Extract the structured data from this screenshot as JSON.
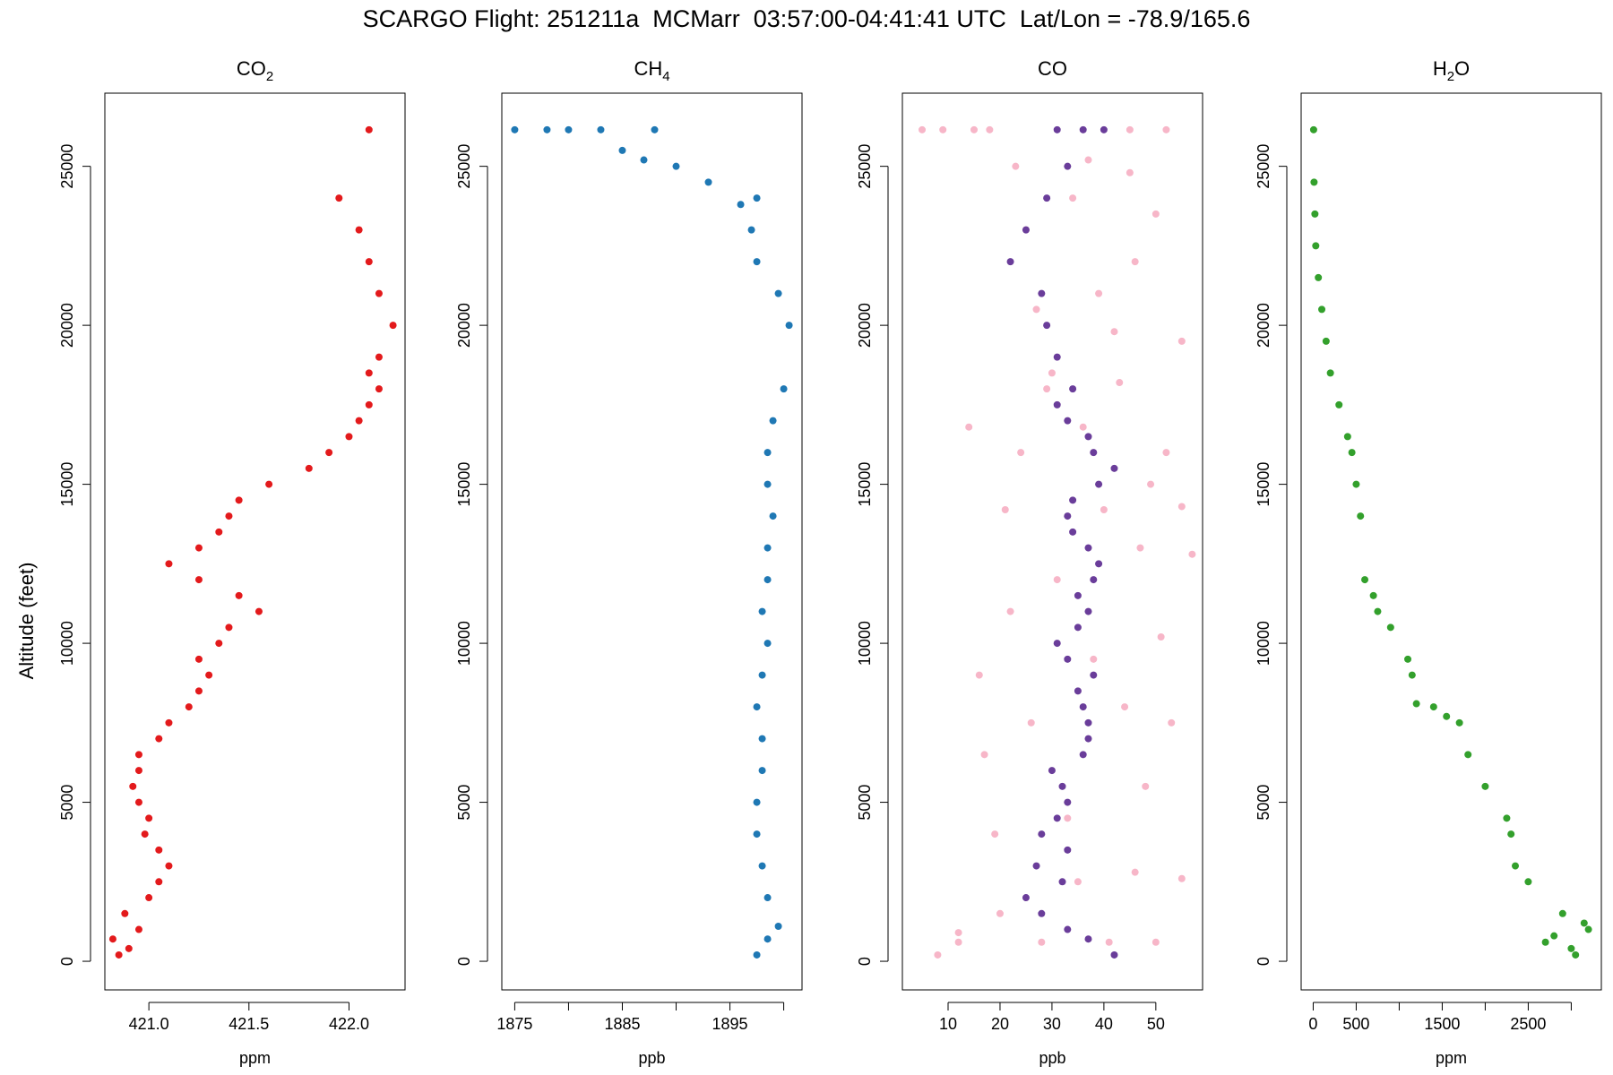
{
  "title": "SCARGO Flight: 251211a  MCMarr  03:57:00-04:41:41 UTC  Lat/Lon = -78.9/165.6",
  "ylabel": "Altitude (feet)",
  "chart_data": [
    {
      "type": "scatter",
      "title": "CO",
      "title_sub": "2",
      "xlabel": "ppm",
      "ylabel": "Altitude (feet)",
      "xlim": [
        420.78,
        422.28
      ],
      "ylim": [
        -900,
        27300
      ],
      "xticks": [
        421.0,
        421.5,
        422.0
      ],
      "xtick_labels": [
        "421.0",
        "421.5",
        "422.0"
      ],
      "yticks": [
        0,
        5000,
        10000,
        15000,
        20000,
        25000
      ],
      "ytick_labels": [
        "0",
        "5000",
        "10000",
        "15000",
        "20000",
        "25000"
      ],
      "color": "#e31a1c",
      "series": [
        {
          "name": "CO2",
          "color": "#e31a1c",
          "x": [
            420.85,
            420.9,
            420.82,
            420.95,
            420.88,
            421.0,
            421.05,
            421.1,
            421.05,
            420.98,
            421.0,
            420.95,
            420.92,
            420.95,
            420.95,
            421.05,
            421.1,
            421.2,
            421.25,
            421.3,
            421.25,
            421.35,
            421.4,
            421.55,
            421.45,
            421.25,
            421.1,
            421.25,
            421.35,
            421.4,
            421.45,
            421.6,
            421.8,
            421.9,
            422.0,
            422.05,
            422.1,
            422.15,
            422.1,
            422.15,
            422.22,
            422.15,
            422.1,
            422.05,
            421.95,
            422.1
          ],
          "y": [
            200,
            400,
            700,
            1000,
            1500,
            2000,
            2500,
            3000,
            3500,
            4000,
            4500,
            5000,
            5500,
            6000,
            6500,
            7000,
            7500,
            8000,
            8500,
            9000,
            9500,
            10000,
            10500,
            11000,
            11500,
            12000,
            12500,
            13000,
            13500,
            14000,
            14500,
            15000,
            15500,
            16000,
            16500,
            17000,
            17500,
            18000,
            18500,
            19000,
            20000,
            21000,
            22000,
            23000,
            24000,
            26150
          ]
        }
      ]
    },
    {
      "type": "scatter",
      "title": "CH",
      "title_sub": "4",
      "xlabel": "ppb",
      "ylabel": "Altitude (feet)",
      "xlim": [
        1873.8,
        1901.7
      ],
      "ylim": [
        -900,
        27300
      ],
      "xticks": [
        1875,
        1880,
        1885,
        1890,
        1895,
        1900
      ],
      "xtick_labels": [
        "1875",
        "",
        "1885",
        "",
        "1895",
        ""
      ],
      "yticks": [
        0,
        5000,
        10000,
        15000,
        20000,
        25000
      ],
      "ytick_labels": [
        "0",
        "5000",
        "10000",
        "15000",
        "20000",
        "25000"
      ],
      "color": "#1f78b4",
      "series": [
        {
          "name": "CH4",
          "color": "#1f78b4",
          "x": [
            1897.5,
            1898.5,
            1899.5,
            1898.5,
            1898.0,
            1897.5,
            1897.5,
            1898.0,
            1898.0,
            1897.5,
            1898.0,
            1898.5,
            1898.0,
            1898.5,
            1898.5,
            1899.0,
            1898.5,
            1898.5,
            1899.0,
            1900.0,
            1900.5,
            1899.5,
            1897.5,
            1897.0,
            1897.5,
            1896.0,
            1893.0,
            1890.0,
            1887.0,
            1885.0,
            1880.0,
            1875.0,
            1878.0,
            1883.0,
            1888.0
          ],
          "y": [
            200,
            700,
            1100,
            2000,
            3000,
            4000,
            5000,
            6000,
            7000,
            8000,
            9000,
            10000,
            11000,
            12000,
            13000,
            14000,
            15000,
            16000,
            17000,
            18000,
            20000,
            21000,
            22000,
            23000,
            24000,
            23800,
            24500,
            25000,
            25200,
            25500,
            26150,
            26150,
            26150,
            26150,
            26150
          ]
        }
      ]
    },
    {
      "type": "scatter",
      "title": "CO",
      "title_sub": "",
      "xlabel": "ppb",
      "ylabel": "Altitude (feet)",
      "xlim": [
        1.2,
        59
      ],
      "ylim": [
        -900,
        27300
      ],
      "xticks": [
        10,
        20,
        30,
        40,
        50
      ],
      "xtick_labels": [
        "10",
        "20",
        "30",
        "40",
        "50"
      ],
      "yticks": [
        0,
        5000,
        10000,
        15000,
        20000,
        25000
      ],
      "ytick_labels": [
        "0",
        "5000",
        "10000",
        "15000",
        "20000",
        "25000"
      ],
      "series": [
        {
          "name": "CO raw",
          "color": "#f7b6c8",
          "x": [
            5,
            9,
            15,
            18,
            45,
            52,
            12,
            28,
            41,
            50,
            20,
            35,
            46,
            55,
            19,
            33,
            48,
            17,
            26,
            44,
            53,
            16,
            38,
            51,
            22,
            31,
            47,
            57,
            21,
            40,
            49,
            24,
            36,
            52,
            14,
            29,
            43,
            55,
            27,
            39,
            46,
            25,
            34,
            50,
            23,
            37,
            45,
            30,
            42,
            8,
            12,
            55
          ],
          "y": [
            26150,
            26150,
            26150,
            26150,
            26150,
            26150,
            600,
            600,
            600,
            600,
            1500,
            2500,
            2800,
            2600,
            4000,
            4500,
            5500,
            6500,
            7500,
            8000,
            7500,
            9000,
            9500,
            10200,
            11000,
            12000,
            13000,
            12800,
            14200,
            14200,
            15000,
            16000,
            16800,
            16000,
            16800,
            18000,
            18200,
            19500,
            20500,
            21000,
            22000,
            23000,
            24000,
            23500,
            25000,
            25200,
            24800,
            18500,
            19800,
            200,
            900,
            14300
          ]
        },
        {
          "name": "CO",
          "color": "#6a3d9a",
          "x": [
            42,
            37,
            33,
            28,
            25,
            32,
            27,
            33,
            28,
            31,
            33,
            32,
            30,
            36,
            37,
            37,
            36,
            35,
            38,
            33,
            31,
            35,
            37,
            35,
            38,
            39,
            37,
            34,
            33,
            34,
            39,
            42,
            38,
            37,
            33,
            31,
            34,
            31,
            29,
            28,
            22,
            25,
            29,
            33,
            31,
            36,
            40
          ],
          "y": [
            200,
            700,
            1000,
            1500,
            2000,
            2500,
            3000,
            3500,
            4000,
            4500,
            5000,
            5500,
            6000,
            6500,
            7000,
            7500,
            8000,
            8500,
            9000,
            9500,
            10000,
            10500,
            11000,
            11500,
            12000,
            12500,
            13000,
            13500,
            14000,
            14500,
            15000,
            15500,
            16000,
            16500,
            17000,
            17500,
            18000,
            19000,
            20000,
            21000,
            22000,
            23000,
            24000,
            25000,
            26150,
            26150,
            26150
          ]
        }
      ]
    },
    {
      "type": "scatter",
      "title": "H",
      "title_sub": "2",
      "title_after": "O",
      "xlabel": "ppm",
      "ylabel": "Altitude (feet)",
      "xlim": [
        -140,
        3350
      ],
      "ylim": [
        -900,
        27300
      ],
      "xticks": [
        0,
        500,
        1000,
        1500,
        2000,
        2500,
        3000
      ],
      "xtick_labels": [
        "0",
        "500",
        "",
        "1500",
        "",
        "2500",
        ""
      ],
      "yticks": [
        0,
        5000,
        10000,
        15000,
        20000,
        25000
      ],
      "ytick_labels": [
        "0",
        "5000",
        "10000",
        "15000",
        "20000",
        "25000"
      ],
      "color": "#33a02c",
      "series": [
        {
          "name": "H2O",
          "color": "#33a02c",
          "x": [
            3050,
            3000,
            2700,
            2800,
            3200,
            3150,
            2900,
            2500,
            2350,
            2300,
            2250,
            2000,
            1800,
            1700,
            1550,
            1400,
            1200,
            1150,
            1100,
            900,
            750,
            700,
            600,
            550,
            500,
            450,
            400,
            300,
            200,
            150,
            100,
            60,
            30,
            20,
            10,
            5
          ],
          "y": [
            200,
            400,
            600,
            800,
            1000,
            1200,
            1500,
            2500,
            3000,
            4000,
            4500,
            5500,
            6500,
            7500,
            7700,
            8000,
            8100,
            9000,
            9500,
            10500,
            11000,
            11500,
            12000,
            14000,
            15000,
            16000,
            16500,
            17500,
            18500,
            19500,
            20500,
            21500,
            22500,
            23500,
            24500,
            26150
          ]
        }
      ]
    }
  ]
}
